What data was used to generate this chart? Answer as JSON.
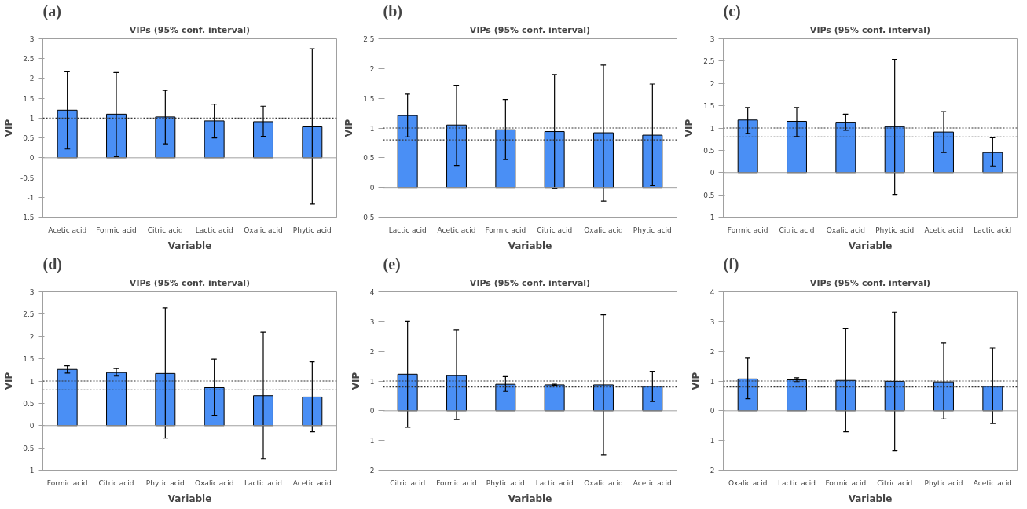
{
  "chart_data": [
    {
      "type": "bar",
      "title": "VIPs (95% conf. interval)",
      "annotations": [
        "(a)"
      ],
      "xlabel": "Variable",
      "ylabel": "VIP",
      "color": "#4a8ff5",
      "grid": false,
      "categories": [
        "Acetic acid",
        "Formic acid",
        "Citric acid",
        "Lactic acid",
        "Oxalic acid",
        "Phytic acid"
      ],
      "values": [
        1.2,
        1.1,
        1.03,
        0.93,
        0.91,
        0.78
      ],
      "errors": [
        [
          0.22,
          2.17
        ],
        [
          0.03,
          2.15
        ],
        [
          0.35,
          1.7
        ],
        [
          0.5,
          1.35
        ],
        [
          0.54,
          1.3
        ],
        [
          -1.17,
          2.75
        ]
      ],
      "ylim": [
        -1.5,
        3
      ],
      "yticks": [
        -1.5,
        -1,
        -0.5,
        0,
        0.5,
        1,
        1.5,
        2,
        2.5,
        3
      ],
      "ref_lines": [
        {
          "axis": "y",
          "value": 1,
          "line_style": "dotted"
        },
        {
          "axis": "y",
          "value": 0.8,
          "line_style": "dotted"
        }
      ]
    },
    {
      "type": "bar",
      "title": "VIPs (95% conf. interval)",
      "annotations": [
        "(b)"
      ],
      "xlabel": "Variable",
      "ylabel": "VIP",
      "color": "#4a8ff5",
      "grid": false,
      "categories": [
        "Lactic acid",
        "Acetic acid",
        "Formic acid",
        "Citric acid",
        "Oxalic acid",
        "Phytic acid"
      ],
      "values": [
        1.21,
        1.05,
        0.97,
        0.94,
        0.92,
        0.88
      ],
      "errors": [
        [
          0.85,
          1.57
        ],
        [
          0.37,
          1.72
        ],
        [
          0.47,
          1.48
        ],
        [
          -0.01,
          1.9
        ],
        [
          -0.23,
          2.06
        ],
        [
          0.03,
          1.74
        ]
      ],
      "ylim": [
        -0.5,
        2.5
      ],
      "yticks": [
        -0.5,
        0,
        0.5,
        1,
        1.5,
        2,
        2.5
      ],
      "ref_lines": [
        {
          "axis": "y",
          "value": 1,
          "line_style": "dotted"
        },
        {
          "axis": "y",
          "value": 0.8,
          "line_style": "dotted"
        }
      ]
    },
    {
      "type": "bar",
      "title": "VIPs (95% conf. interval)",
      "annotations": [
        "(c)"
      ],
      "xlabel": "Variable",
      "ylabel": "VIP",
      "color": "#4a8ff5",
      "grid": false,
      "categories": [
        "Formic acid",
        "Citric acid",
        "Oxalic acid",
        "Phytic acid",
        "Acetic acid",
        "Lactic acid"
      ],
      "values": [
        1.18,
        1.15,
        1.13,
        1.03,
        0.91,
        0.45
      ],
      "errors": [
        [
          0.88,
          1.46
        ],
        [
          0.81,
          1.46
        ],
        [
          0.95,
          1.31
        ],
        [
          -0.49,
          2.54
        ],
        [
          0.45,
          1.37
        ],
        [
          0.15,
          0.78
        ]
      ],
      "ylim": [
        -1,
        3
      ],
      "yticks": [
        -1,
        -0.5,
        0,
        0.5,
        1,
        1.5,
        2,
        2.5,
        3
      ],
      "ref_lines": [
        {
          "axis": "y",
          "value": 1,
          "line_style": "dotted"
        },
        {
          "axis": "y",
          "value": 0.8,
          "line_style": "dotted"
        }
      ]
    },
    {
      "type": "bar",
      "title": "VIPs (95% conf. interval)",
      "annotations": [
        "(d)"
      ],
      "xlabel": "Variable",
      "ylabel": "VIP",
      "color": "#4a8ff5",
      "grid": false,
      "categories": [
        "Formic acid",
        "Citric acid",
        "Phytic acid",
        "Oxalic acid",
        "Lactic acid",
        "Acetic acid"
      ],
      "values": [
        1.26,
        1.19,
        1.17,
        0.85,
        0.67,
        0.64
      ],
      "errors": [
        [
          1.18,
          1.34
        ],
        [
          1.11,
          1.28
        ],
        [
          -0.28,
          2.64
        ],
        [
          0.23,
          1.49
        ],
        [
          -0.74,
          2.09
        ],
        [
          -0.14,
          1.43
        ]
      ],
      "ylim": [
        -1,
        3
      ],
      "yticks": [
        -1,
        -0.5,
        0,
        0.5,
        1,
        1.5,
        2,
        2.5,
        3
      ],
      "ref_lines": [
        {
          "axis": "y",
          "value": 1,
          "line_style": "dotted"
        },
        {
          "axis": "y",
          "value": 0.8,
          "line_style": "dotted"
        }
      ]
    },
    {
      "type": "bar",
      "title": "VIPs (95% conf. interval)",
      "annotations": [
        "(e)"
      ],
      "xlabel": "Variable",
      "ylabel": "VIP",
      "color": "#4a8ff5",
      "grid": false,
      "categories": [
        "Citric acid",
        "Formic acid",
        "Phytic acid",
        "Lactic acid",
        "Oxalic acid",
        "Acetic acid"
      ],
      "values": [
        1.23,
        1.18,
        0.89,
        0.87,
        0.87,
        0.82
      ],
      "errors": [
        [
          -0.56,
          3.0
        ],
        [
          -0.3,
          2.72
        ],
        [
          0.65,
          1.15
        ],
        [
          0.85,
          0.89
        ],
        [
          -1.48,
          3.23
        ],
        [
          0.31,
          1.33
        ]
      ],
      "ylim": [
        -2,
        4
      ],
      "yticks": [
        -2,
        -1,
        0,
        1,
        2,
        3,
        4
      ],
      "ref_lines": [
        {
          "axis": "y",
          "value": 1,
          "line_style": "dotted"
        },
        {
          "axis": "y",
          "value": 0.8,
          "line_style": "dotted"
        }
      ]
    },
    {
      "type": "bar",
      "title": "VIPs (95% conf. interval)",
      "annotations": [
        "(f)"
      ],
      "xlabel": "Variable",
      "ylabel": "VIP",
      "color": "#4a8ff5",
      "grid": false,
      "categories": [
        "Oxalic acid",
        "Lactic acid",
        "Formic acid",
        "Citric acid",
        "Phytic acid",
        "Acetic acid"
      ],
      "values": [
        1.07,
        1.04,
        1.02,
        0.99,
        0.97,
        0.82
      ],
      "errors": [
        [
          0.4,
          1.77
        ],
        [
          0.98,
          1.11
        ],
        [
          -0.71,
          2.76
        ],
        [
          -1.34,
          3.32
        ],
        [
          -0.28,
          2.27
        ],
        [
          -0.43,
          2.11
        ]
      ],
      "ylim": [
        -2,
        4
      ],
      "yticks": [
        -2,
        -1,
        0,
        1,
        2,
        3,
        4
      ],
      "ref_lines": [
        {
          "axis": "y",
          "value": 1,
          "line_style": "dotted"
        },
        {
          "axis": "y",
          "value": 0.8,
          "line_style": "dotted"
        }
      ]
    }
  ]
}
